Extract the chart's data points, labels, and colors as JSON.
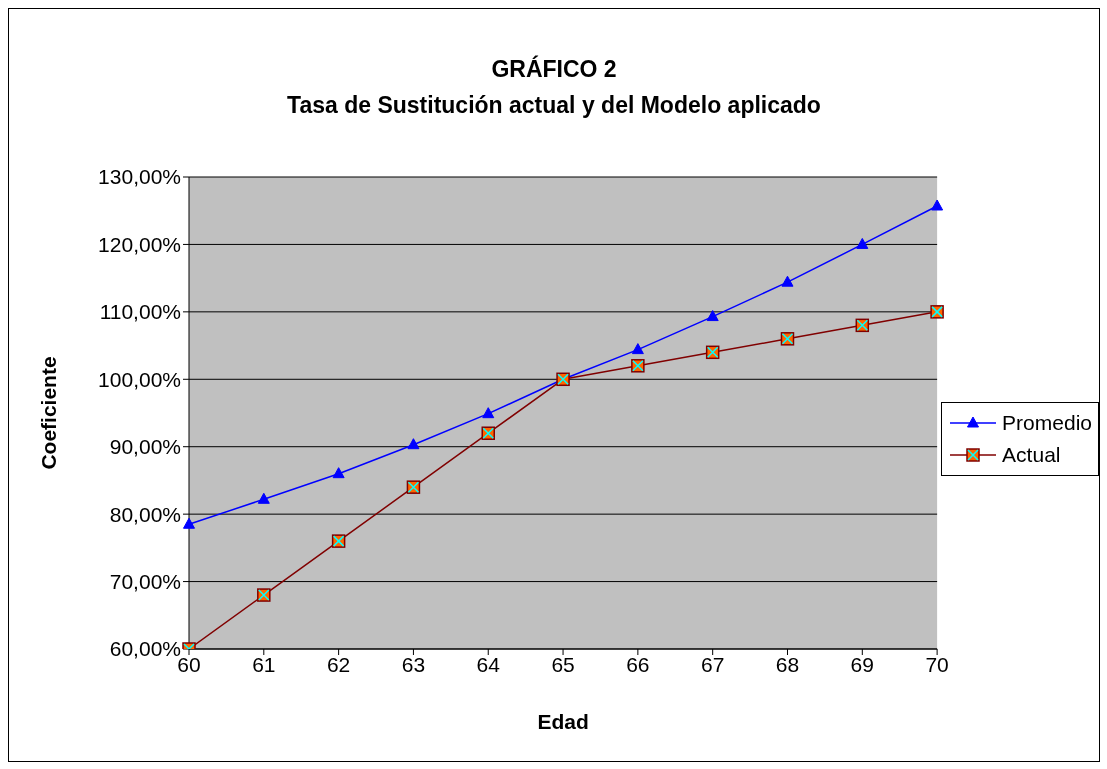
{
  "chart_data": {
    "type": "line",
    "title": "GRÁFICO 2",
    "subtitle": "Tasa de Sustitución actual y del Modelo aplicado",
    "xlabel": "Edad",
    "ylabel": "Coeficiente",
    "categories": [
      "60",
      "61",
      "62",
      "63",
      "64",
      "65",
      "66",
      "67",
      "68",
      "69",
      "70"
    ],
    "series": [
      {
        "name": "Promedio",
        "color": "#0000ff",
        "marker": "triangle",
        "values": [
          78.5,
          82.2,
          86.0,
          90.3,
          94.9,
          100,
          104.4,
          109.3,
          114.4,
          120.0,
          125.7
        ]
      },
      {
        "name": "Actual",
        "color": "#800000",
        "marker": "square",
        "values": [
          60,
          68,
          76,
          84,
          92,
          100,
          102,
          104,
          106,
          108,
          110
        ]
      }
    ],
    "ylim": [
      60,
      130
    ],
    "yticks": [
      {
        "value": 60,
        "label": "60,00%"
      },
      {
        "value": 70,
        "label": "70,00%"
      },
      {
        "value": 80,
        "label": "80,00%"
      },
      {
        "value": 90,
        "label": "90,00%"
      },
      {
        "value": 100,
        "label": "100,00%"
      },
      {
        "value": 110,
        "label": "110,00%"
      },
      {
        "value": 120,
        "label": "120,00%"
      },
      {
        "value": 130,
        "label": "130,00%"
      }
    ],
    "grid": "y",
    "legend": "right",
    "line_style": "solid"
  }
}
